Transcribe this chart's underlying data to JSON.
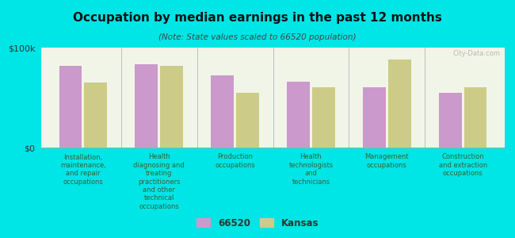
{
  "title": "Occupation by median earnings in the past 12 months",
  "subtitle": "(Note: State values scaled to 66520 population)",
  "categories": [
    "Installation,\nmaintenance,\nand repair\noccupations",
    "Health\ndiagnosing and\ntreating\npractitioners\nand other\ntechnical\noccupations",
    "Production\noccupations",
    "Health\ntechnologists\nand\ntechnicians",
    "Management\noccupations",
    "Construction\nand extraction\noccupations"
  ],
  "values_66520": [
    82000,
    83000,
    72000,
    66000,
    60000,
    55000
  ],
  "values_kansas": [
    65000,
    82000,
    55000,
    60000,
    88000,
    60000
  ],
  "color_66520": "#cc99cc",
  "color_kansas": "#cccc88",
  "ylim": [
    0,
    100000
  ],
  "ytick_labels": [
    "$0",
    "$100k"
  ],
  "background_color": "#00e5e5",
  "plot_bg_color": "#f0f5e8",
  "legend_label_66520": "66520",
  "legend_label_kansas": "Kansas",
  "watermark": "City-Data.com"
}
